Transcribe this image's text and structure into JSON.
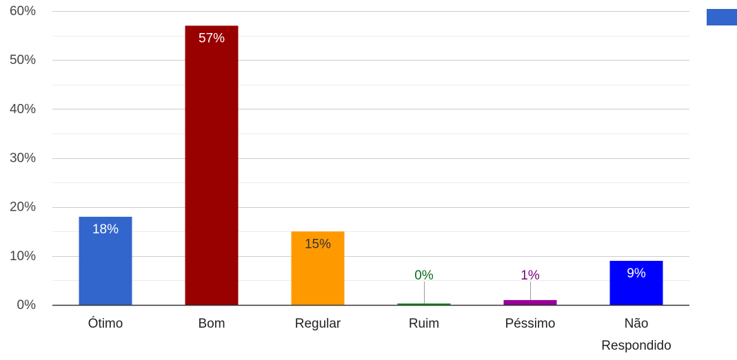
{
  "chart_data": {
    "type": "bar",
    "categories": [
      "Ótimo",
      "Bom",
      "Regular",
      "Ruim",
      "Péssimo",
      "Não Respondido"
    ],
    "category_lines": [
      [
        "Ótimo"
      ],
      [
        "Bom"
      ],
      [
        "Regular"
      ],
      [
        "Ruim"
      ],
      [
        "Péssimo"
      ],
      [
        "Não",
        "Respondido"
      ]
    ],
    "values": [
      18,
      57,
      15,
      0.3,
      1,
      9
    ],
    "data_labels": [
      "18%",
      "57%",
      "15%",
      "0%",
      "1%",
      "9%"
    ],
    "colors": [
      "#3366cc",
      "#990000",
      "#ff9900",
      "#109618",
      "#990099",
      "#0000ff"
    ],
    "label_colors": [
      "#ffffff",
      "#ffffff",
      "#333333",
      "#0b6b1a",
      "#7a007a",
      "#ffffff"
    ],
    "label_placement": [
      "inside",
      "inside",
      "inside",
      "above",
      "above",
      "inside"
    ],
    "ylim": [
      0,
      60
    ],
    "yticks": [
      0,
      10,
      20,
      30,
      40,
      50,
      60
    ],
    "ytick_labels": [
      "0%",
      "10%",
      "20%",
      "30%",
      "40%",
      "50%",
      "60%"
    ],
    "title": "",
    "xlabel": "",
    "ylabel": "",
    "grid": true,
    "legend": {
      "position": "top-right",
      "color": "#3366cc"
    }
  }
}
